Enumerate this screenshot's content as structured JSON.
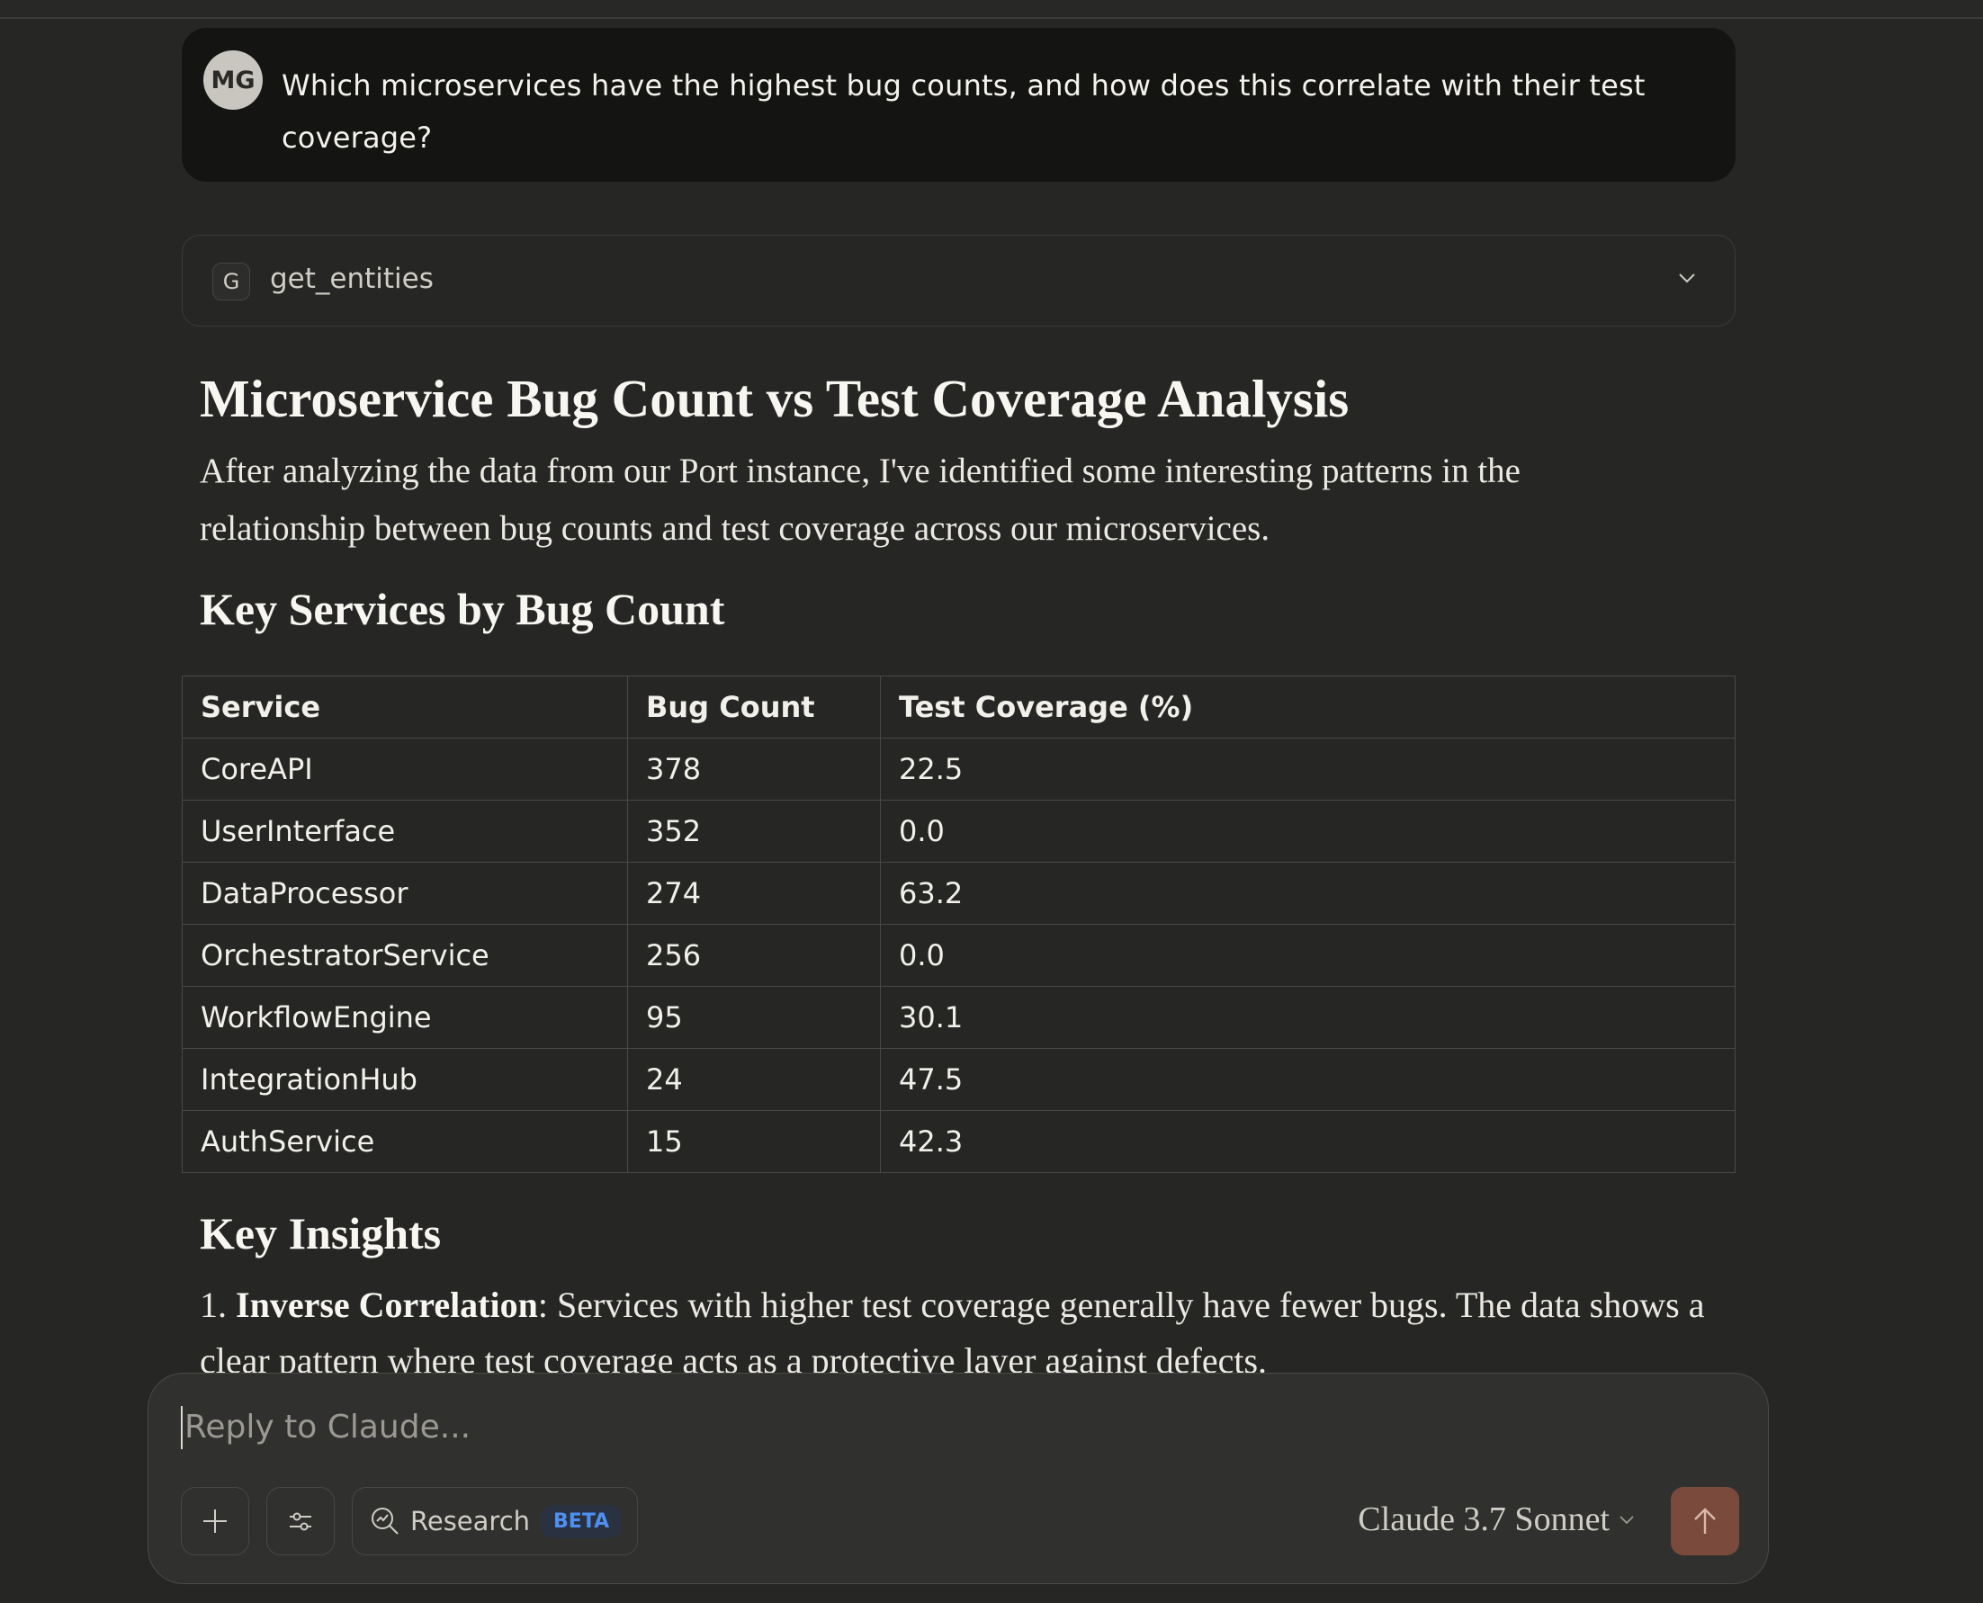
{
  "user_message": {
    "avatar_initials": "MG",
    "text": "Which microservices have the highest bug counts, and how does this correlate with their test coverage?"
  },
  "tool_call": {
    "icon_letter": "G",
    "name": "get_entities",
    "icon": "chevron-down-icon"
  },
  "response": {
    "title": "Microservice Bug Count vs Test Coverage Analysis",
    "intro": "After analyzing the data from our Port instance, I've identified some interesting patterns in the relationship between bug counts and test coverage across our microservices.",
    "table_heading": "Key Services by Bug Count",
    "table": {
      "headers": [
        "Service",
        "Bug Count",
        "Test Coverage (%)"
      ],
      "rows": [
        [
          "CoreAPI",
          "378",
          "22.5"
        ],
        [
          "UserInterface",
          "352",
          "0.0"
        ],
        [
          "DataProcessor",
          "274",
          "63.2"
        ],
        [
          "OrchestratorService",
          "256",
          "0.0"
        ],
        [
          "WorkflowEngine",
          "95",
          "30.1"
        ],
        [
          "IntegrationHub",
          "24",
          "47.5"
        ],
        [
          "AuthService",
          "15",
          "42.3"
        ]
      ]
    },
    "insights_heading": "Key Insights",
    "insights": [
      {
        "number": "1.",
        "title": "Inverse Correlation",
        "text": ": Services with higher test coverage generally have fewer bugs. The data shows a clear pattern where test coverage acts as a protective layer against defects."
      }
    ]
  },
  "composer": {
    "placeholder": "Reply to Claude...",
    "research_label": "Research",
    "beta_badge": "BETA",
    "model": "Claude 3.7 Sonnet",
    "send_color": "#7a4a3c"
  }
}
